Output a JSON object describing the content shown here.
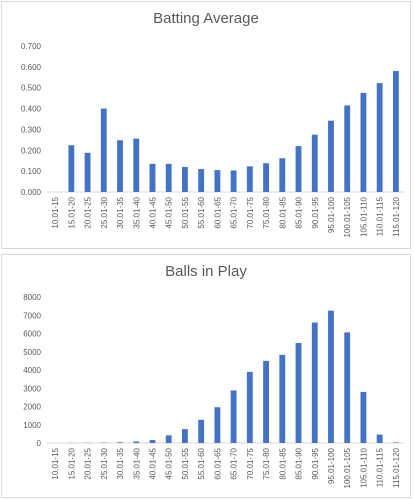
{
  "chart_data": [
    {
      "type": "bar",
      "title": "Batting Average",
      "categories": [
        "10.01-15",
        "15.01-20",
        "20.01-25",
        "25.01-30",
        "30.01-35",
        "35.01-40",
        "40.01-45",
        "45.01-50",
        "50.01-55",
        "55.01-60",
        "60.01-65",
        "65.01-70",
        "70.01-75",
        "75.01-80",
        "80.01-85",
        "85.01-90",
        "90.01-95",
        "95.01-100",
        "100.01-105",
        "105.01-110",
        "110.01-115",
        "115.01-120"
      ],
      "values": [
        0,
        0.224,
        0.188,
        0.4,
        0.248,
        0.256,
        0.135,
        0.135,
        0.12,
        0.11,
        0.105,
        0.103,
        0.123,
        0.138,
        0.162,
        0.22,
        0.275,
        0.342,
        0.415,
        0.475,
        0.522,
        0.58
      ],
      "yticks": [
        "0.000",
        "0.100",
        "0.200",
        "0.300",
        "0.400",
        "0.500",
        "0.600",
        "0.700"
      ],
      "ylim": [
        0,
        0.7
      ],
      "color": "#4472c4",
      "grid": false
    },
    {
      "type": "bar",
      "title": "Balls in Play",
      "categories": [
        "10.01-15",
        "15.01-20",
        "20.01-25",
        "25.01-30",
        "30.01-35",
        "35.01-40",
        "40.01-45",
        "45.01-50",
        "50.01-55",
        "55.01-60",
        "60.01-65",
        "65.01-70",
        "70.01-75",
        "75.01-80",
        "80.01-85",
        "85.01-90",
        "90.01-95",
        "95.01-100",
        "100.01-105",
        "105.01-110",
        "110.01-115",
        "115.01-120"
      ],
      "values": [
        0,
        8,
        12,
        20,
        40,
        80,
        160,
        420,
        760,
        1270,
        1960,
        2880,
        3900,
        4500,
        4830,
        5480,
        6600,
        7250,
        6060,
        2800,
        460,
        30
      ],
      "yticks": [
        "0",
        "1000",
        "2000",
        "3000",
        "4000",
        "5000",
        "6000",
        "7000",
        "8000"
      ],
      "ylim": [
        0,
        8000
      ],
      "color": "#4472c4",
      "grid": false
    }
  ]
}
